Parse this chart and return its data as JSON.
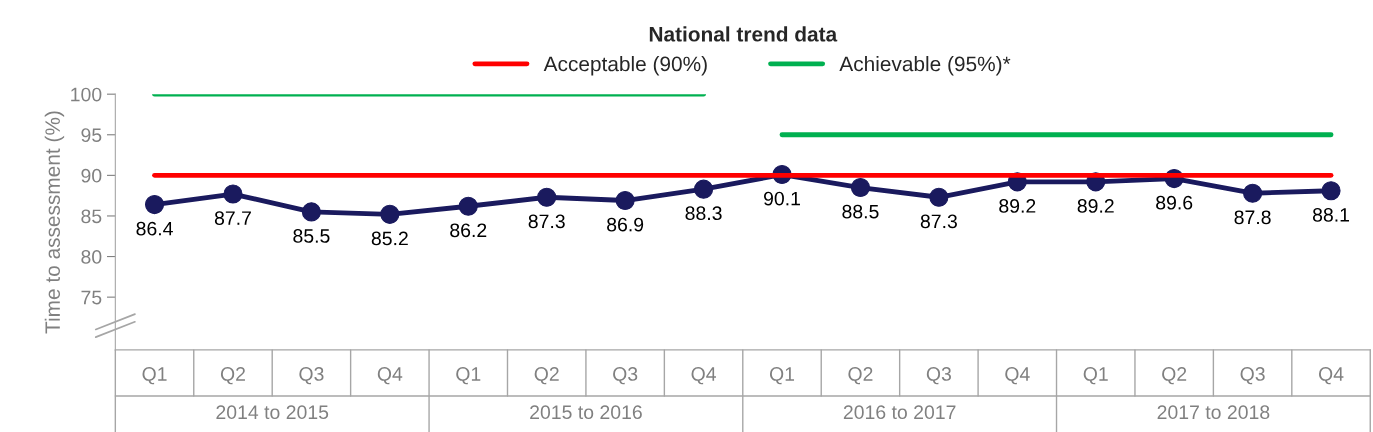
{
  "chart_data": {
    "type": "line",
    "title": "National trend data",
    "ylabel": "Time to assessment (%)",
    "categories": [
      "Q1",
      "Q2",
      "Q3",
      "Q4",
      "Q1",
      "Q2",
      "Q3",
      "Q4",
      "Q1",
      "Q2",
      "Q3",
      "Q4",
      "Q1",
      "Q2",
      "Q3",
      "Q4"
    ],
    "annotations": [
      "2014 to 2015",
      "2015 to 2016",
      "2016 to 2017",
      "2017 to 2018"
    ],
    "series": [
      {
        "name": "Acceptable (90%)",
        "color": "#ff0000",
        "marker": "none",
        "values": [
          90,
          90,
          90,
          90,
          90,
          90,
          90,
          90,
          90,
          90,
          90,
          90,
          90,
          90,
          90,
          90
        ]
      },
      {
        "name": "Achievable (95%)*",
        "color": "#00b050",
        "marker": "none",
        "values": [
          100,
          100,
          100,
          100,
          100,
          100,
          100,
          100,
          null,
          null,
          null,
          null,
          null,
          null,
          null,
          null
        ]
      },
      {
        "color": "#00b050",
        "marker": "none",
        "values": [
          null,
          null,
          null,
          null,
          null,
          null,
          null,
          null,
          95,
          95,
          95,
          95,
          95,
          95,
          95,
          95
        ]
      },
      {
        "color": "#1a1a5e",
        "marker": "circle",
        "data_labels": true,
        "values": [
          86.4,
          87.7,
          85.5,
          85.2,
          86.2,
          87.3,
          86.9,
          88.3,
          90.1,
          88.5,
          87.3,
          89.2,
          89.2,
          89.6,
          87.8,
          88.1
        ]
      }
    ],
    "ylim": [
      68.5,
      100
    ],
    "yticks": [
      75,
      80,
      85,
      90,
      95,
      100
    ],
    "grid": false,
    "legend": "top"
  }
}
